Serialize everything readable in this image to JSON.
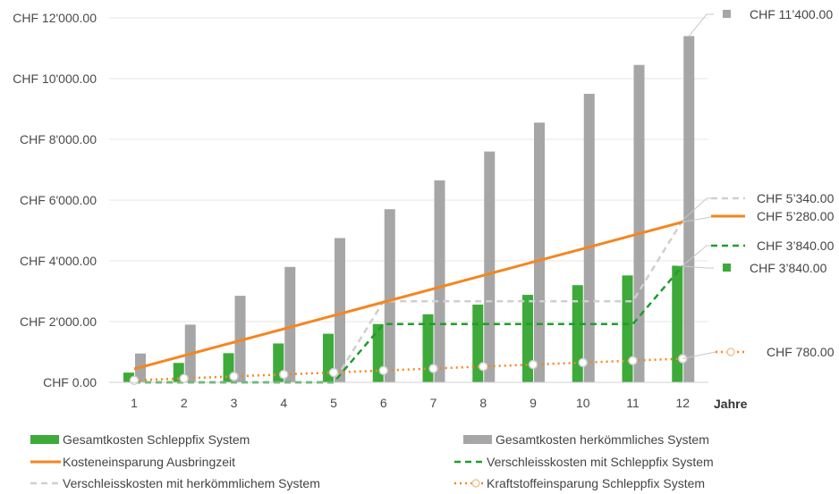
{
  "chart_data": {
    "type": "bar",
    "x_unit_label": "Jahre",
    "categories": [
      "1",
      "2",
      "3",
      "4",
      "5",
      "6",
      "7",
      "8",
      "9",
      "10",
      "11",
      "12"
    ],
    "ylim": [
      0,
      12000
    ],
    "yticks": [
      {
        "value": 0,
        "label": "CHF 0.00"
      },
      {
        "value": 2000,
        "label": "CHF 2'000.00"
      },
      {
        "value": 4000,
        "label": "CHF 4'000.00"
      },
      {
        "value": 6000,
        "label": "CHF 6'000.00"
      },
      {
        "value": 8000,
        "label": "CHF 8'000.00"
      },
      {
        "value": 10000,
        "label": "CHF 10'000.00"
      },
      {
        "value": 12000,
        "label": "CHF 12'000.00"
      }
    ],
    "grid": true,
    "legend_position": "bottom",
    "series": [
      {
        "name": "Gesamtkosten Schleppfix System",
        "kind": "bar",
        "color": "#3daa3a",
        "values": [
          320,
          640,
          960,
          1280,
          1600,
          1920,
          2240,
          2560,
          2880,
          3200,
          3520,
          3840
        ],
        "end_label": "CHF 3’840.00"
      },
      {
        "name": "Gesamtkosten herkömmliches System",
        "kind": "bar",
        "color": "#a6a6a6",
        "values": [
          950,
          1900,
          2850,
          3800,
          4750,
          5700,
          6650,
          7600,
          8550,
          9500,
          10450,
          11400
        ],
        "end_label": "CHF 11’400.00"
      },
      {
        "name": "Kosteneinsparung Ausbringzeit",
        "kind": "line",
        "style": "solid",
        "color": "#f5861f",
        "values": [
          440,
          880,
          1320,
          1760,
          2200,
          2640,
          3080,
          3520,
          3960,
          4400,
          4840,
          5280
        ],
        "end_label": "CHF 5’280.00"
      },
      {
        "name": "Verschleisskosten mit Schleppfix System",
        "kind": "line",
        "style": "dashed",
        "color": "#1e9e2b",
        "values": [
          0,
          0,
          0,
          0,
          0,
          1920,
          1920,
          1920,
          1920,
          1920,
          1920,
          3840
        ],
        "end_label": "CHF 3’840.00"
      },
      {
        "name": "Verschleisskosten mit herkömmlichem System",
        "kind": "line",
        "style": "dashed",
        "color": "#cfcfcf",
        "values": [
          0,
          0,
          0,
          0,
          0,
          2670,
          2670,
          2670,
          2670,
          2670,
          2670,
          5340
        ],
        "end_label": "CHF 5’340.00"
      },
      {
        "name": "Kraftstoffeinsparung Schleppfix System",
        "kind": "line",
        "style": "dotted",
        "color": "#f5861f",
        "values": [
          65,
          130,
          195,
          260,
          325,
          390,
          455,
          520,
          585,
          650,
          715,
          780
        ],
        "end_label": "CHF 780.00"
      }
    ]
  }
}
